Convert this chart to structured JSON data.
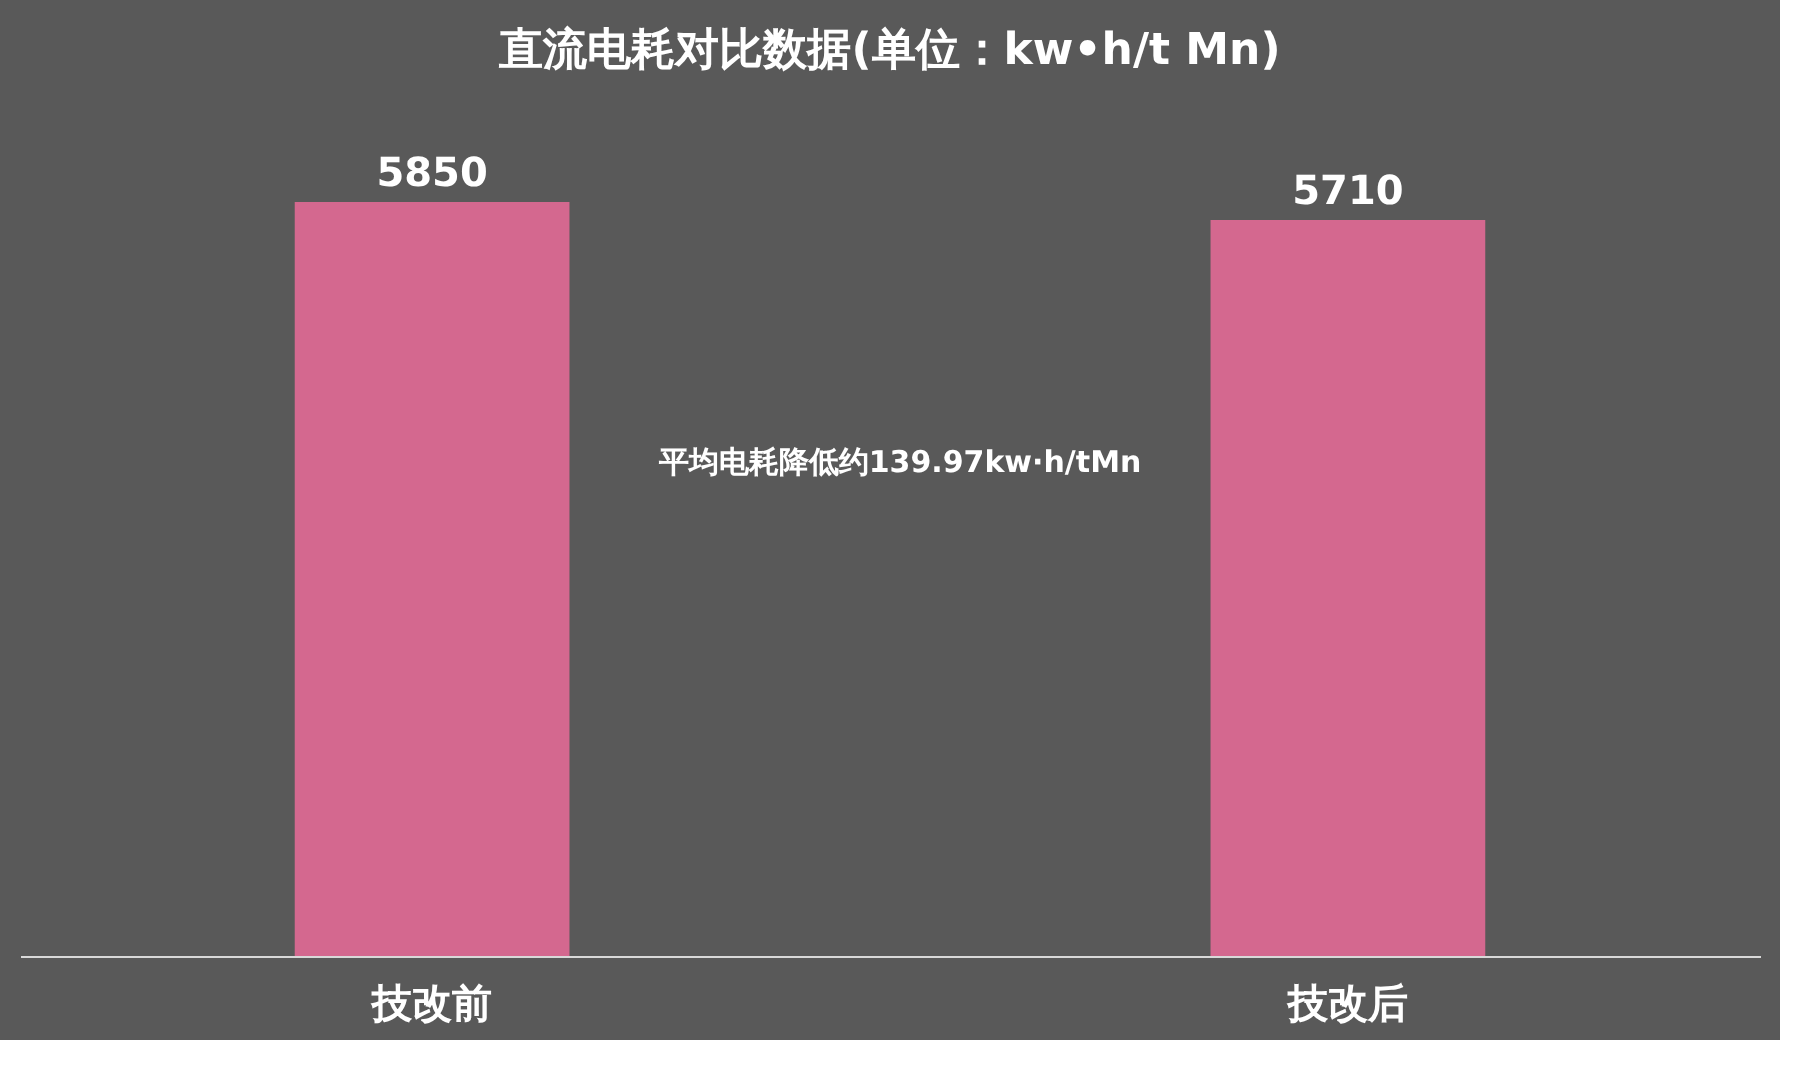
{
  "chart_data": {
    "type": "bar",
    "title": "直流电耗对比数据(单位：kw•h/t Mn)",
    "categories": [
      "技改前",
      "技改后"
    ],
    "values": [
      5850,
      5710
    ],
    "color": "#d4688f",
    "data_labels": true,
    "annotations": [
      "平均电耗降低约139.97kw·h/tMn"
    ]
  }
}
